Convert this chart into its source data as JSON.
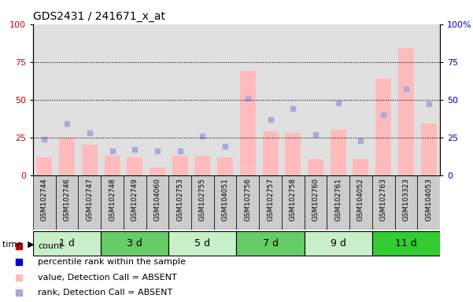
{
  "title": "GDS2431 / 241671_x_at",
  "samples": [
    "GSM102744",
    "GSM102746",
    "GSM102747",
    "GSM102748",
    "GSM102749",
    "GSM104060",
    "GSM102753",
    "GSM102755",
    "GSM104051",
    "GSM102756",
    "GSM102757",
    "GSM102758",
    "GSM102760",
    "GSM102761",
    "GSM104052",
    "GSM102763",
    "GSM103323",
    "GSM104053"
  ],
  "pink_bars": [
    12,
    25,
    20,
    13,
    12,
    5,
    13,
    13,
    12,
    69,
    29,
    28,
    11,
    30,
    11,
    64,
    84,
    34
  ],
  "blue_squares": [
    24,
    34,
    28,
    16,
    17,
    16,
    16,
    26,
    19,
    51,
    37,
    44,
    27,
    48,
    23,
    40,
    57,
    47
  ],
  "time_groups": [
    {
      "label": "1 d",
      "start": 0,
      "end": 3,
      "color": "#c8f0c8"
    },
    {
      "label": "3 d",
      "start": 3,
      "end": 6,
      "color": "#66cc66"
    },
    {
      "label": "5 d",
      "start": 6,
      "end": 9,
      "color": "#c8f0c8"
    },
    {
      "label": "7 d",
      "start": 9,
      "end": 12,
      "color": "#66cc66"
    },
    {
      "label": "9 d",
      "start": 12,
      "end": 15,
      "color": "#c8f0c8"
    },
    {
      "label": "11 d",
      "start": 15,
      "end": 18,
      "color": "#33cc33"
    }
  ],
  "ylim": [
    0,
    100
  ],
  "yticks": [
    0,
    25,
    50,
    75,
    100
  ],
  "grid_lines": [
    25,
    50,
    75
  ],
  "pink_color": "#ffbbbb",
  "blue_color": "#aaaadd",
  "col_bg_color": "#cccccc",
  "left_axis_color": "#cc0000",
  "right_axis_color": "#0000cc",
  "bar_width": 0.7,
  "legend_colors": [
    "#cc0000",
    "#0000cc",
    "#ffbbbb",
    "#aaaadd"
  ],
  "legend_labels": [
    "count",
    "percentile rank within the sample",
    "value, Detection Call = ABSENT",
    "rank, Detection Call = ABSENT"
  ]
}
